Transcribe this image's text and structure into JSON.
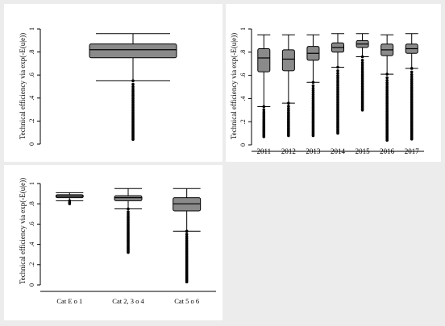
{
  "chart_data": [
    {
      "type": "box",
      "ylabel": "Technical efficiency via exp(-E(u|e))",
      "ylim": [
        0,
        1
      ],
      "yticks": [
        0,
        0.2,
        0.4,
        0.6,
        0.8,
        1
      ],
      "ytick_labels": [
        "0",
        ".2",
        ".4",
        ".6",
        ".8",
        "1"
      ],
      "categories": [
        ""
      ],
      "boxes": [
        {
          "lower_whisker": 0.55,
          "q1": 0.75,
          "median": 0.82,
          "q3": 0.87,
          "upper_whisker": 0.96,
          "outliers_range": [
            0.04,
            0.55
          ]
        }
      ]
    },
    {
      "type": "box",
      "ylabel": "Technical efficiency via exp(-E(u|e))",
      "ylim": [
        0,
        1
      ],
      "yticks": [
        0,
        0.2,
        0.4,
        0.6,
        0.8,
        1
      ],
      "ytick_labels": [
        "0",
        ".2",
        ".4",
        ".6",
        ".8",
        "1"
      ],
      "categories": [
        "2011",
        "2012",
        "2013",
        "2014",
        "2015",
        "2016",
        "2017"
      ],
      "boxes": [
        {
          "lower_whisker": 0.33,
          "q1": 0.63,
          "median": 0.75,
          "q3": 0.83,
          "upper_whisker": 0.95,
          "outliers_range": [
            0.07,
            0.33
          ]
        },
        {
          "lower_whisker": 0.36,
          "q1": 0.64,
          "median": 0.74,
          "q3": 0.82,
          "upper_whisker": 0.95,
          "outliers_range": [
            0.08,
            0.36
          ]
        },
        {
          "lower_whisker": 0.54,
          "q1": 0.73,
          "median": 0.79,
          "q3": 0.85,
          "upper_whisker": 0.95,
          "outliers_range": [
            0.08,
            0.54
          ]
        },
        {
          "lower_whisker": 0.67,
          "q1": 0.8,
          "median": 0.84,
          "q3": 0.88,
          "upper_whisker": 0.96,
          "outliers_range": [
            0.1,
            0.67
          ]
        },
        {
          "lower_whisker": 0.76,
          "q1": 0.84,
          "median": 0.87,
          "q3": 0.9,
          "upper_whisker": 0.96,
          "outliers_range": [
            0.3,
            0.76
          ]
        },
        {
          "lower_whisker": 0.61,
          "q1": 0.77,
          "median": 0.82,
          "q3": 0.87,
          "upper_whisker": 0.95,
          "outliers_range": [
            0.04,
            0.61
          ]
        },
        {
          "lower_whisker": 0.66,
          "q1": 0.79,
          "median": 0.83,
          "q3": 0.87,
          "upper_whisker": 0.96,
          "outliers_range": [
            0.05,
            0.66
          ]
        }
      ]
    },
    {
      "type": "box",
      "ylabel": "Technical efficiency via exp(-E(u|e))",
      "ylim": [
        0,
        1
      ],
      "yticks": [
        0,
        0.2,
        0.4,
        0.6,
        0.8,
        1
      ],
      "ytick_labels": [
        "0",
        ".2",
        ".4",
        ".6",
        ".8",
        "1"
      ],
      "categories": [
        "Cat E o 1",
        "Cat 2, 3 o 4",
        "Cat 5 o 6"
      ],
      "boxes": [
        {
          "lower_whisker": 0.83,
          "q1": 0.86,
          "median": 0.875,
          "q3": 0.89,
          "upper_whisker": 0.91,
          "outliers_range": [
            0.8,
            0.83
          ]
        },
        {
          "lower_whisker": 0.75,
          "q1": 0.83,
          "median": 0.86,
          "q3": 0.88,
          "upper_whisker": 0.95,
          "outliers_range": [
            0.32,
            0.75
          ]
        },
        {
          "lower_whisker": 0.53,
          "q1": 0.73,
          "median": 0.8,
          "q3": 0.86,
          "upper_whisker": 0.95,
          "outliers_range": [
            0.03,
            0.53
          ]
        }
      ]
    }
  ]
}
